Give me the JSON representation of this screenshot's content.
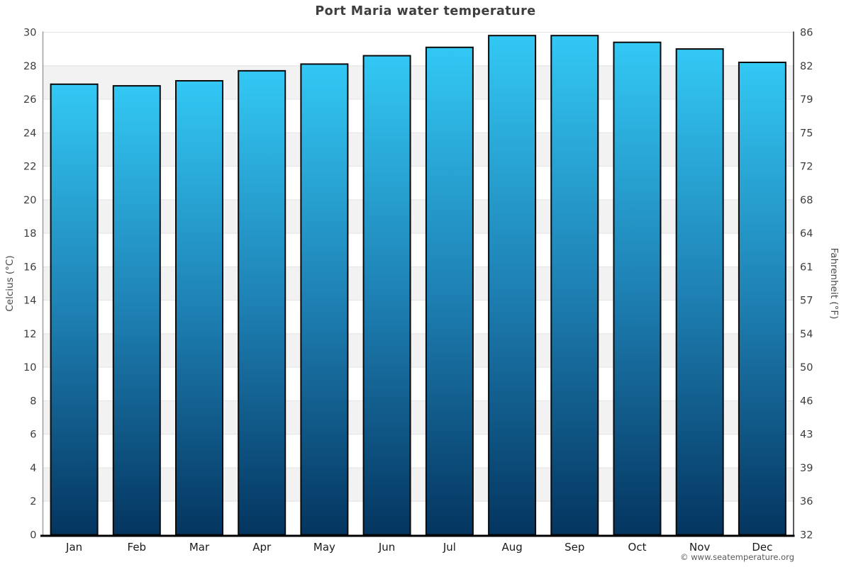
{
  "chart_data": {
    "type": "bar",
    "title": "Port Maria water temperature",
    "categories": [
      "Jan",
      "Feb",
      "Mar",
      "Apr",
      "May",
      "Jun",
      "Jul",
      "Aug",
      "Sep",
      "Oct",
      "Nov",
      "Dec"
    ],
    "values": [
      26.9,
      26.8,
      27.1,
      27.7,
      28.1,
      28.6,
      29.1,
      29.8,
      29.8,
      29.4,
      29.0,
      28.2
    ],
    "ylabel_left": "Celcius (°C)",
    "ylabel_right": "Fahrenheit (°F)",
    "yticks_celsius": [
      0,
      2,
      4,
      6,
      8,
      10,
      12,
      14,
      16,
      18,
      20,
      22,
      24,
      26,
      28,
      30
    ],
    "yticks_fahrenheit": [
      32,
      36,
      39,
      43,
      46,
      50,
      54,
      57,
      61,
      64,
      68,
      72,
      75,
      79,
      82,
      86
    ],
    "ylim": [
      0,
      30
    ],
    "grid": true,
    "legend_position": "none",
    "colors": {
      "bar_gradient_top": "#33c8f4",
      "bar_gradient_mid": "#1e81b4",
      "bar_gradient_bottom": "#043560",
      "bar_border": "#0a0a0a",
      "band_fill": "#f2f2f2",
      "gridline": "#e3e3e3",
      "axis_left": "#999999",
      "axis_right": "#3c3c3c",
      "baseline": "#000000",
      "tick_text": "#3d3d3d",
      "month_text": "#1a1a1a"
    }
  },
  "footer": {
    "credit": "© www.seatemperature.org"
  }
}
